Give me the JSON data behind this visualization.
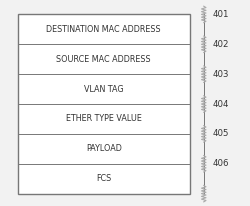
{
  "rows": [
    "DESTINATION MAC ADDRESS",
    "SOURCE MAC ADDRESS",
    "VLAN TAG",
    "ETHER TYPE VALUE",
    "PAYLOAD",
    "FCS"
  ],
  "ref_numbers": [
    "401",
    "402",
    "403",
    "404",
    "405",
    "406"
  ],
  "background_color": "#f2f2f2",
  "box_edge": "#777777",
  "text_color": "#333333",
  "ref_color": "#333333",
  "font_size": 5.8,
  "ref_font_size": 6.2
}
